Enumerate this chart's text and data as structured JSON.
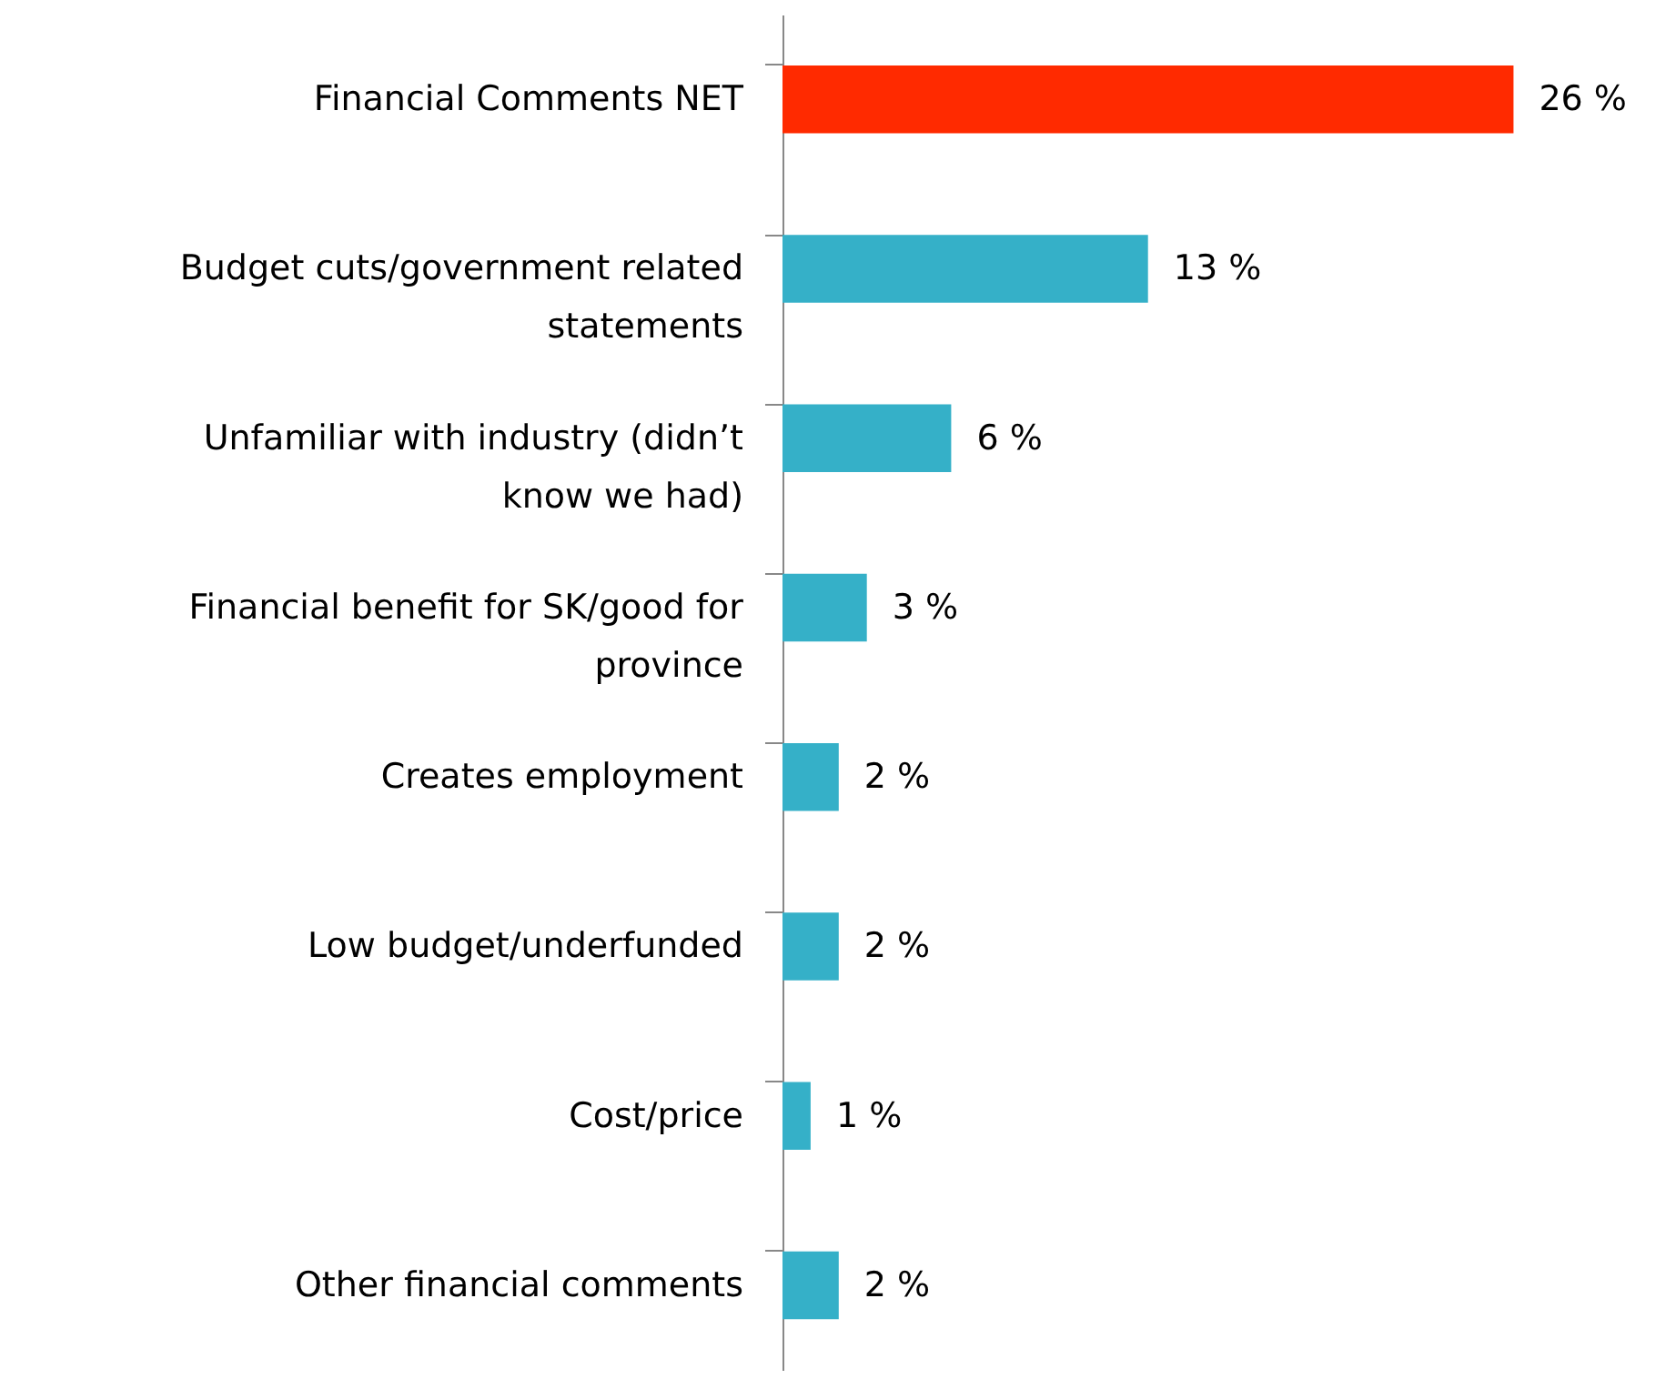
{
  "chart_data": {
    "type": "bar",
    "orientation": "horizontal",
    "categories": [
      "Financial Comments NET",
      "Budget cuts/government related statements",
      "Unfamiliar with industry (didn’t know we had)",
      "Financial benefit for SK/good for province",
      "Creates employment",
      "Low budget/underfunded",
      "Cost/price",
      "Other financial comments"
    ],
    "values": [
      26,
      13,
      6,
      3,
      2,
      2,
      1,
      2
    ],
    "value_labels": [
      "26 %",
      "13 %",
      "6 %",
      "3 %",
      "2 %",
      "2 %",
      "1 %",
      "2 %"
    ],
    "colors": [
      "#ff2a00",
      "#35b0c8",
      "#35b0c8",
      "#35b0c8",
      "#35b0c8",
      "#35b0c8",
      "#35b0c8",
      "#35b0c8"
    ]
  }
}
